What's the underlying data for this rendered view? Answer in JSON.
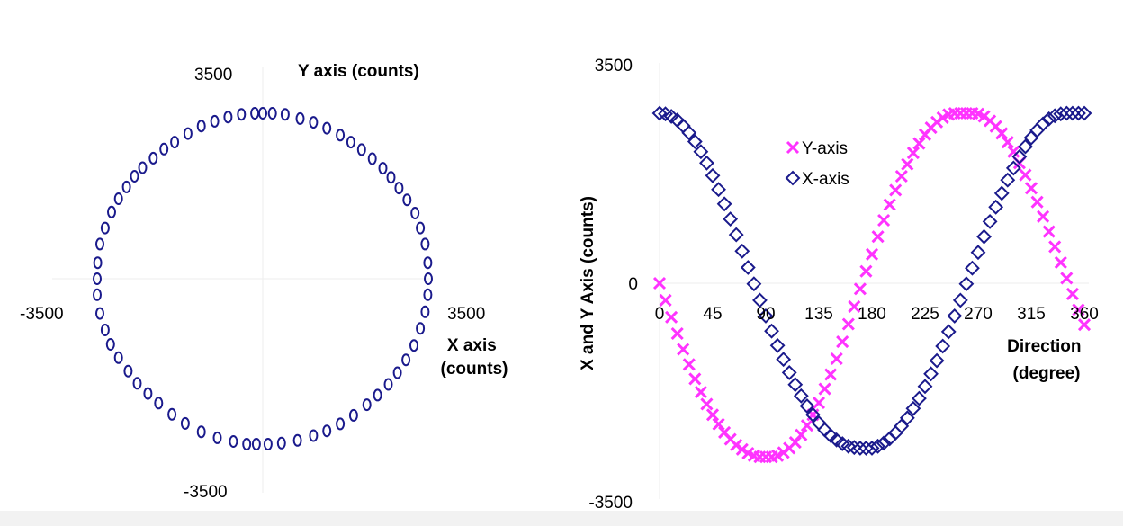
{
  "chart_data": [
    {
      "type": "scatter",
      "title": "",
      "xlabel": "X axis (counts)",
      "ylabel": "Y axis (counts)",
      "xlim": [
        -3500,
        3500
      ],
      "ylim": [
        -3500,
        3500
      ],
      "x_tick_labels": [
        "-3500",
        "3500"
      ],
      "y_tick_labels": [
        "3500",
        "-3500"
      ],
      "grid": false,
      "series": [
        {
          "marker": "circle",
          "color": "#1a1a8c",
          "points": [
            [
              0,
              3100
            ],
            [
              180,
              3100
            ],
            [
              420,
              3080
            ],
            [
              700,
              3000
            ],
            [
              950,
              2930
            ],
            [
              1200,
              2820
            ],
            [
              1450,
              2690
            ],
            [
              1650,
              2560
            ],
            [
              1850,
              2420
            ],
            [
              2050,
              2250
            ],
            [
              2250,
              2070
            ],
            [
              2400,
              1900
            ],
            [
              2550,
              1700
            ],
            [
              2700,
              1480
            ],
            [
              2850,
              1230
            ],
            [
              2950,
              950
            ],
            [
              3040,
              650
            ],
            [
              3090,
              300
            ],
            [
              3100,
              0
            ],
            [
              3090,
              -300
            ],
            [
              3040,
              -620
            ],
            [
              2950,
              -930
            ],
            [
              2830,
              -1250
            ],
            [
              2680,
              -1520
            ],
            [
              2520,
              -1760
            ],
            [
              2350,
              -1980
            ],
            [
              2150,
              -2180
            ],
            [
              1950,
              -2360
            ],
            [
              1700,
              -2560
            ],
            [
              1450,
              -2720
            ],
            [
              1200,
              -2850
            ],
            [
              950,
              -2940
            ],
            [
              650,
              -3030
            ],
            [
              350,
              -3080
            ],
            [
              100,
              -3100
            ],
            [
              -120,
              -3100
            ],
            [
              -300,
              -3100
            ],
            [
              -550,
              -3050
            ],
            [
              -850,
              -2980
            ],
            [
              -1150,
              -2870
            ],
            [
              -1450,
              -2710
            ],
            [
              -1700,
              -2540
            ],
            [
              -1950,
              -2330
            ],
            [
              -2150,
              -2150
            ],
            [
              -2350,
              -1960
            ],
            [
              -2520,
              -1730
            ],
            [
              -2700,
              -1480
            ],
            [
              -2850,
              -1230
            ],
            [
              -2950,
              -960
            ],
            [
              -3050,
              -650
            ],
            [
              -3100,
              -300
            ],
            [
              -3100,
              0
            ],
            [
              -3090,
              300
            ],
            [
              -3050,
              650
            ],
            [
              -2950,
              950
            ],
            [
              -2830,
              1250
            ],
            [
              -2700,
              1500
            ],
            [
              -2550,
              1720
            ],
            [
              -2400,
              1920
            ],
            [
              -2250,
              2080
            ],
            [
              -2050,
              2260
            ],
            [
              -1850,
              2430
            ],
            [
              -1650,
              2560
            ],
            [
              -1400,
              2720
            ],
            [
              -1150,
              2860
            ],
            [
              -900,
              2950
            ],
            [
              -650,
              3030
            ],
            [
              -400,
              3080
            ],
            [
              -150,
              3100
            ]
          ]
        }
      ]
    },
    {
      "type": "scatter",
      "title": "",
      "xlabel": "Direction (degree)",
      "ylabel": "X and Y Axis (counts)",
      "xlim": [
        0,
        360
      ],
      "ylim": [
        -3500,
        3500
      ],
      "x_ticks": [
        0,
        45,
        90,
        135,
        180,
        225,
        270,
        315,
        360
      ],
      "y_tick_labels": [
        "3500",
        "0",
        "-3500"
      ],
      "grid": false,
      "legend": {
        "placement": "top-center",
        "entries": [
          "Y-axis",
          "X-axis"
        ]
      },
      "series": [
        {
          "name": "Y-axis",
          "marker": "x",
          "color": "#ff33ff",
          "x": [
            0,
            5,
            10,
            15,
            20,
            25,
            30,
            35,
            40,
            45,
            50,
            55,
            60,
            65,
            70,
            75,
            80,
            85,
            90,
            95,
            100,
            105,
            110,
            115,
            120,
            125,
            130,
            135,
            140,
            145,
            150,
            155,
            160,
            165,
            170,
            175,
            180,
            185,
            190,
            195,
            200,
            205,
            210,
            215,
            220,
            225,
            230,
            235,
            240,
            245,
            250,
            255,
            260,
            265,
            270,
            275,
            280,
            285,
            290,
            295,
            300,
            305,
            310,
            315,
            320,
            325,
            330,
            335,
            340,
            345,
            350,
            355,
            360
          ],
          "y": [
            0,
            -270,
            -540,
            -800,
            -1050,
            -1290,
            -1520,
            -1730,
            -1920,
            -2090,
            -2240,
            -2370,
            -2480,
            -2570,
            -2640,
            -2700,
            -2740,
            -2760,
            -2760,
            -2760,
            -2740,
            -2690,
            -2620,
            -2530,
            -2410,
            -2260,
            -2090,
            -1900,
            -1680,
            -1450,
            -1200,
            -930,
            -650,
            -370,
            -90,
            190,
            460,
            740,
            1000,
            1250,
            1480,
            1700,
            1890,
            2070,
            2220,
            2360,
            2470,
            2560,
            2630,
            2680,
            2700,
            2700,
            2700,
            2700,
            2690,
            2650,
            2580,
            2490,
            2380,
            2240,
            2090,
            1910,
            1720,
            1510,
            1290,
            1060,
            820,
            580,
            330,
            80,
            -170,
            -420,
            -660
          ]
        },
        {
          "name": "X-axis",
          "marker": "diamond",
          "color": "#1a1a8c",
          "x": [
            0,
            5,
            10,
            15,
            20,
            25,
            30,
            35,
            40,
            45,
            50,
            55,
            60,
            65,
            70,
            75,
            80,
            85,
            90,
            95,
            100,
            105,
            110,
            115,
            120,
            125,
            130,
            135,
            140,
            145,
            150,
            155,
            160,
            165,
            170,
            175,
            180,
            185,
            190,
            195,
            200,
            205,
            210,
            215,
            220,
            225,
            230,
            235,
            240,
            245,
            250,
            255,
            260,
            265,
            270,
            275,
            280,
            285,
            290,
            295,
            300,
            305,
            310,
            315,
            320,
            325,
            330,
            335,
            340,
            345,
            350,
            355,
            360
          ],
          "y": [
            2700,
            2690,
            2650,
            2590,
            2500,
            2390,
            2250,
            2090,
            1910,
            1710,
            1490,
            1260,
            1020,
            770,
            510,
            250,
            -10,
            -270,
            -520,
            -760,
            -990,
            -1210,
            -1420,
            -1610,
            -1790,
            -1950,
            -2090,
            -2220,
            -2330,
            -2420,
            -2490,
            -2550,
            -2590,
            -2610,
            -2620,
            -2620,
            -2620,
            -2590,
            -2540,
            -2470,
            -2380,
            -2270,
            -2140,
            -1990,
            -1830,
            -1640,
            -1440,
            -1230,
            -1000,
            -770,
            -520,
            -270,
            -10,
            240,
            490,
            740,
            980,
            1210,
            1430,
            1640,
            1830,
            2010,
            2170,
            2310,
            2430,
            2530,
            2610,
            2660,
            2690,
            2700,
            2700,
            2700,
            2700
          ]
        }
      ]
    }
  ]
}
